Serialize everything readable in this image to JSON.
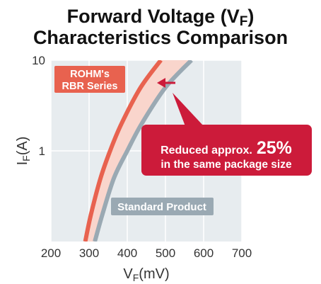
{
  "chart_data": {
    "type": "line",
    "title_lines": [
      "Forward Voltage (V",
      "Characteristics Comparison"
    ],
    "title_subscript": "F",
    "title_close": ")",
    "xlabel_main": "V",
    "xlabel_sub": "F",
    "xlabel_unit": "(mV)",
    "ylabel_main": "I",
    "ylabel_sub": "F",
    "ylabel_unit": "(A)",
    "x_ticks": [
      "200",
      "300",
      "400",
      "500",
      "600",
      "700"
    ],
    "y_ticks": [
      "10",
      "1"
    ],
    "xlim": [
      200,
      700
    ],
    "ylim_log": [
      0.1,
      10
    ],
    "grid": true,
    "series": [
      {
        "name": "ROHM's RBR Series",
        "name_lines": [
          "ROHM's",
          "RBR Series"
        ],
        "color": "#e8624f",
        "points": [
          [
            290,
            0.1
          ],
          [
            305,
            0.2
          ],
          [
            330,
            0.5
          ],
          [
            355,
            1.0
          ],
          [
            385,
            2.0
          ],
          [
            435,
            5.0
          ],
          [
            488,
            10.0
          ]
        ]
      },
      {
        "name": "Standard Product",
        "color": "#9aa9b3",
        "points": [
          [
            315,
            0.1
          ],
          [
            335,
            0.2
          ],
          [
            365,
            0.5
          ],
          [
            400,
            1.0
          ],
          [
            438,
            2.0
          ],
          [
            500,
            5.0
          ],
          [
            568,
            10.0
          ]
        ]
      }
    ],
    "annotation": {
      "line1_prefix": "Reduced approx.",
      "line1_value": "25%",
      "line2": "in the same package size",
      "color": "#cc1b3a"
    },
    "band_color": "#f9d5cc"
  }
}
